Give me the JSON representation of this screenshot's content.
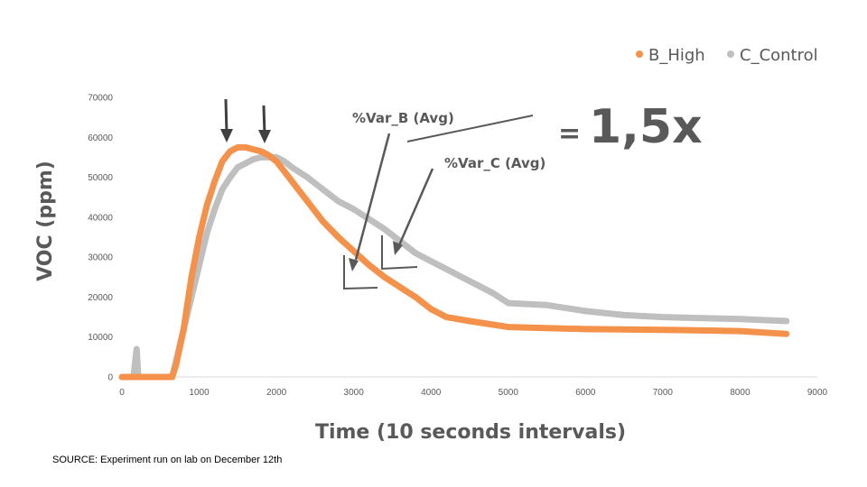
{
  "chart_data": {
    "type": "line",
    "xlabel": "Time (10 seconds intervals)",
    "ylabel": "VOC (ppm)",
    "xlim": [
      0,
      9000
    ],
    "ylim": [
      0,
      70000
    ],
    "x_ticks": [
      0,
      1000,
      2000,
      3000,
      4000,
      5000,
      6000,
      7000,
      8000,
      9000
    ],
    "y_ticks": [
      0,
      10000,
      20000,
      30000,
      40000,
      50000,
      60000,
      70000
    ],
    "grid": false,
    "legend_position": "top-right",
    "series": [
      {
        "name": "B_High",
        "color": "#F4914B",
        "points": [
          [
            0,
            0
          ],
          [
            200,
            0
          ],
          [
            650,
            0
          ],
          [
            700,
            3000
          ],
          [
            800,
            12000
          ],
          [
            900,
            25000
          ],
          [
            1000,
            35000
          ],
          [
            1100,
            43000
          ],
          [
            1200,
            49000
          ],
          [
            1300,
            54000
          ],
          [
            1400,
            56500
          ],
          [
            1500,
            57500
          ],
          [
            1600,
            57500
          ],
          [
            1700,
            57000
          ],
          [
            1800,
            56500
          ],
          [
            1900,
            55500
          ],
          [
            2000,
            54000
          ],
          [
            2100,
            51500
          ],
          [
            2200,
            49000
          ],
          [
            2400,
            44000
          ],
          [
            2600,
            39000
          ],
          [
            2800,
            35000
          ],
          [
            3000,
            31500
          ],
          [
            3200,
            28000
          ],
          [
            3400,
            25000
          ],
          [
            3600,
            22500
          ],
          [
            3800,
            20000
          ],
          [
            4000,
            17000
          ],
          [
            4200,
            15000
          ],
          [
            4500,
            14000
          ],
          [
            5000,
            12500
          ],
          [
            6000,
            12000
          ],
          [
            7000,
            11800
          ],
          [
            8000,
            11500
          ],
          [
            8600,
            10800
          ]
        ]
      },
      {
        "name": "C_Control",
        "color": "#BFBFBF",
        "points": [
          [
            0,
            0
          ],
          [
            150,
            0
          ],
          [
            190,
            7000
          ],
          [
            210,
            0
          ],
          [
            650,
            0
          ],
          [
            700,
            4000
          ],
          [
            800,
            12000
          ],
          [
            900,
            20000
          ],
          [
            1000,
            28000
          ],
          [
            1100,
            36000
          ],
          [
            1200,
            42000
          ],
          [
            1300,
            47000
          ],
          [
            1400,
            50000
          ],
          [
            1500,
            52500
          ],
          [
            1600,
            53500
          ],
          [
            1700,
            54500
          ],
          [
            1800,
            55000
          ],
          [
            1900,
            55000
          ],
          [
            2000,
            55000
          ],
          [
            2100,
            54000
          ],
          [
            2200,
            52500
          ],
          [
            2400,
            50000
          ],
          [
            2600,
            47000
          ],
          [
            2800,
            44000
          ],
          [
            3000,
            42000
          ],
          [
            3200,
            39500
          ],
          [
            3400,
            37000
          ],
          [
            3600,
            34000
          ],
          [
            3800,
            31000
          ],
          [
            4000,
            29000
          ],
          [
            4200,
            27000
          ],
          [
            4400,
            25000
          ],
          [
            4600,
            23000
          ],
          [
            4800,
            21000
          ],
          [
            5000,
            18500
          ],
          [
            5500,
            18000
          ],
          [
            6000,
            16500
          ],
          [
            6500,
            15500
          ],
          [
            7000,
            15000
          ],
          [
            8000,
            14500
          ],
          [
            8600,
            14000
          ]
        ]
      }
    ],
    "annotations": {
      "var_b": "%Var_B (Avg)",
      "var_c": "%Var_C (Avg)",
      "equals": "=",
      "ratio": "1,5x"
    }
  },
  "source_note": "SOURCE: Experiment run on lab on December 12th"
}
